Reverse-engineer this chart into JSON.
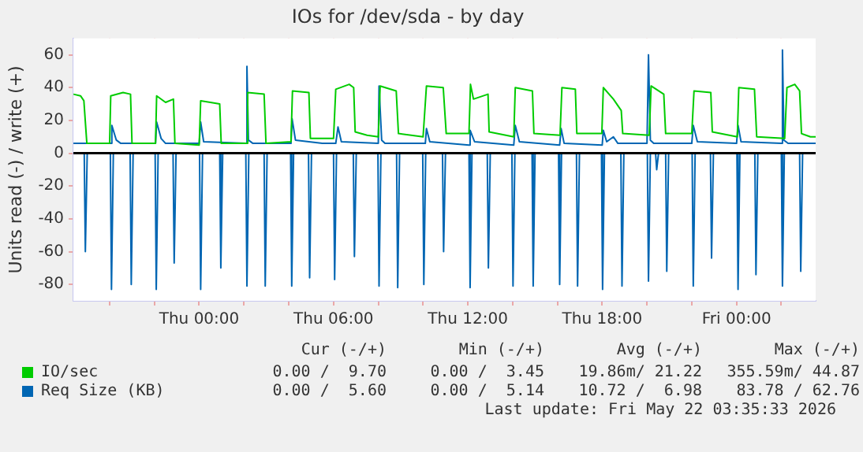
{
  "chart_data": {
    "type": "line",
    "title": "IOs for /dev/sda - by day",
    "ylabel": "Units read (-) / write (+)",
    "xlim": [
      "2026-05-20T18:23",
      "2026-05-22T03:32"
    ],
    "ylim": [
      -90,
      70
    ],
    "xticks": [
      {
        "value": "2026-05-20T20:00",
        "label": null
      },
      {
        "value": "2026-05-20T22:00",
        "label": null
      },
      {
        "value": "2026-05-21T00:00",
        "label": "Thu 00:00"
      },
      {
        "value": "2026-05-21T02:00",
        "label": null
      },
      {
        "value": "2026-05-21T04:00",
        "label": null
      },
      {
        "value": "2026-05-21T06:00",
        "label": "Thu 06:00"
      },
      {
        "value": "2026-05-21T08:00",
        "label": null
      },
      {
        "value": "2026-05-21T10:00",
        "label": null
      },
      {
        "value": "2026-05-21T12:00",
        "label": "Thu 12:00"
      },
      {
        "value": "2026-05-21T14:00",
        "label": null
      },
      {
        "value": "2026-05-21T16:00",
        "label": null
      },
      {
        "value": "2026-05-21T18:00",
        "label": "Thu 18:00"
      },
      {
        "value": "2026-05-21T20:00",
        "label": null
      },
      {
        "value": "2026-05-21T22:00",
        "label": null
      },
      {
        "value": "2026-05-22T00:00",
        "label": "Fri 00:00"
      },
      {
        "value": "2026-05-22T02:00",
        "label": null
      }
    ],
    "yticks": [
      -80,
      -60,
      -40,
      -20,
      0,
      20,
      40,
      60
    ],
    "grid": true,
    "legend": "bottom",
    "marker": "none",
    "line_style": "solid",
    "ref_lines": [
      {
        "axis": "y",
        "value": 0,
        "color": "#000000"
      }
    ],
    "series": [
      {
        "name": "IO/sec",
        "color": "#00cc00",
        "x": [
          "2026-05-20T18:23",
          "2026-05-20T18:42",
          "2026-05-20T18:51",
          "2026-05-20T18:59",
          "2026-05-20T20:00",
          "2026-05-20T20:03",
          "2026-05-20T20:36",
          "2026-05-20T20:56",
          "2026-05-20T21:00",
          "2026-05-20T22:03",
          "2026-05-20T22:06",
          "2026-05-20T22:30",
          "2026-05-20T22:51",
          "2026-05-20T22:55",
          "2026-05-21T00:00",
          "2026-05-21T00:04",
          "2026-05-21T00:30",
          "2026-05-21T00:55",
          "2026-05-21T00:59",
          "2026-05-21T02:06",
          "2026-05-21T02:10",
          "2026-05-21T02:54",
          "2026-05-21T02:59",
          "2026-05-21T04:06",
          "2026-05-21T04:10",
          "2026-05-21T04:54",
          "2026-05-21T04:58",
          "2026-05-21T06:00",
          "2026-05-21T06:06",
          "2026-05-21T06:42",
          "2026-05-21T06:54",
          "2026-05-21T06:58",
          "2026-05-21T07:30",
          "2026-05-21T08:00",
          "2026-05-21T08:05",
          "2026-05-21T08:48",
          "2026-05-21T08:54",
          "2026-05-21T10:00",
          "2026-05-21T10:09",
          "2026-05-21T10:54",
          "2026-05-21T11:02",
          "2026-05-21T12:03",
          "2026-05-21T12:07",
          "2026-05-21T12:15",
          "2026-05-21T12:54",
          "2026-05-21T12:57",
          "2026-05-21T14:03",
          "2026-05-21T14:07",
          "2026-05-21T14:53",
          "2026-05-21T14:57",
          "2026-05-21T16:07",
          "2026-05-21T16:12",
          "2026-05-21T16:48",
          "2026-05-21T16:52",
          "2026-05-21T17:59",
          "2026-05-21T18:03",
          "2026-05-21T18:30",
          "2026-05-21T18:51",
          "2026-05-21T18:55",
          "2026-05-21T20:06",
          "2026-05-21T20:11",
          "2026-05-21T20:45",
          "2026-05-21T20:50",
          "2026-05-21T22:00",
          "2026-05-21T22:06",
          "2026-05-21T22:51",
          "2026-05-21T22:55",
          "2026-05-22T00:02",
          "2026-05-22T00:06",
          "2026-05-22T00:48",
          "2026-05-22T00:54",
          "2026-05-22T02:09",
          "2026-05-22T02:15",
          "2026-05-22T02:36",
          "2026-05-22T02:49",
          "2026-05-22T02:54",
          "2026-05-22T03:18",
          "2026-05-22T03:32"
        ],
        "values": [
          36,
          35,
          32,
          6,
          6,
          35,
          37,
          36,
          6,
          6,
          35,
          31,
          33,
          6,
          5,
          32,
          31,
          30,
          6,
          6,
          37,
          36,
          6,
          7,
          38,
          37,
          9,
          9,
          39,
          42,
          40,
          13,
          11,
          10,
          41,
          38,
          12,
          10,
          41,
          40,
          12,
          12,
          42,
          33,
          36,
          13,
          10,
          40,
          38,
          12,
          11,
          40,
          39,
          12,
          12,
          40,
          33,
          26,
          12,
          11,
          41,
          36,
          12,
          12,
          38,
          37,
          13,
          10,
          40,
          39,
          10,
          9,
          40,
          42,
          38,
          12,
          10,
          10
        ]
      },
      {
        "name": "Req Size (KB)",
        "color": "#0066b3",
        "x": [
          "2026-05-20T18:23",
          "2026-05-20T20:03",
          "2026-05-20T20:06",
          "2026-05-20T20:18",
          "2026-05-20T20:30",
          "2026-05-20T22:03",
          "2026-05-20T22:06",
          "2026-05-20T22:18",
          "2026-05-20T22:30",
          "2026-05-21T00:00",
          "2026-05-21T00:04",
          "2026-05-21T00:12",
          "2026-05-21T02:06",
          "2026-05-21T02:08",
          "2026-05-21T02:12",
          "2026-05-21T02:24",
          "2026-05-21T04:06",
          "2026-05-21T04:09",
          "2026-05-21T04:18",
          "2026-05-21T05:30",
          "2026-05-21T06:06",
          "2026-05-21T06:12",
          "2026-05-21T06:21",
          "2026-05-21T08:00",
          "2026-05-21T08:02",
          "2026-05-21T08:09",
          "2026-05-21T08:18",
          "2026-05-21T10:06",
          "2026-05-21T10:09",
          "2026-05-21T10:18",
          "2026-05-21T12:03",
          "2026-05-21T12:06",
          "2026-05-21T12:18",
          "2026-05-21T14:03",
          "2026-05-21T14:07",
          "2026-05-21T14:18",
          "2026-05-21T16:06",
          "2026-05-21T16:10",
          "2026-05-21T16:18",
          "2026-05-21T18:00",
          "2026-05-21T18:03",
          "2026-05-21T18:12",
          "2026-05-21T18:30",
          "2026-05-21T18:42",
          "2026-05-21T20:00",
          "2026-05-21T20:04",
          "2026-05-21T20:09",
          "2026-05-21T20:18",
          "2026-05-21T22:00",
          "2026-05-21T22:04",
          "2026-05-21T22:15",
          "2026-05-22T00:00",
          "2026-05-22T00:04",
          "2026-05-22T00:12",
          "2026-05-22T02:00",
          "2026-05-22T02:03",
          "2026-05-22T02:07",
          "2026-05-22T02:18",
          "2026-05-22T03:32"
        ],
        "values": [
          6,
          6,
          17,
          8,
          6,
          6,
          19,
          9,
          6,
          6,
          19,
          7,
          6,
          53,
          8,
          6,
          6,
          21,
          8,
          6,
          6,
          16,
          7,
          6,
          41,
          8,
          6,
          6,
          15,
          7,
          5,
          14,
          7,
          5,
          17,
          7,
          5,
          15,
          6,
          5,
          14,
          7,
          10,
          6,
          6,
          60,
          8,
          6,
          6,
          17,
          7,
          6,
          17,
          7,
          6,
          63,
          8,
          6,
          6
        ]
      },
      {
        "color": "#0066b3",
        "x": [
          "2026-05-20T18:23",
          "2026-05-20T18:52",
          "2026-05-20T18:55",
          "2026-05-20T19:00",
          "2026-05-20T20:02",
          "2026-05-20T20:05",
          "2026-05-20T20:10",
          "2026-05-20T20:55",
          "2026-05-20T20:58",
          "2026-05-20T21:03",
          "2026-05-20T22:02",
          "2026-05-20T22:05",
          "2026-05-20T22:10",
          "2026-05-20T22:50",
          "2026-05-20T22:53",
          "2026-05-20T22:58",
          "2026-05-21T00:01",
          "2026-05-21T00:04",
          "2026-05-21T00:09",
          "2026-05-21T00:55",
          "2026-05-21T00:58",
          "2026-05-21T01:03",
          "2026-05-21T02:05",
          "2026-05-21T02:08",
          "2026-05-21T02:13",
          "2026-05-21T02:54",
          "2026-05-21T02:57",
          "2026-05-21T03:02",
          "2026-05-21T04:05",
          "2026-05-21T04:08",
          "2026-05-21T04:13",
          "2026-05-21T04:53",
          "2026-05-21T04:56",
          "2026-05-21T05:01",
          "2026-05-21T06:00",
          "2026-05-21T06:03",
          "2026-05-21T06:08",
          "2026-05-21T06:53",
          "2026-05-21T06:56",
          "2026-05-21T07:01",
          "2026-05-21T07:59",
          "2026-05-21T08:02",
          "2026-05-21T08:07",
          "2026-05-21T08:49",
          "2026-05-21T08:52",
          "2026-05-21T08:57",
          "2026-05-21T09:59",
          "2026-05-21T10:02",
          "2026-05-21T10:07",
          "2026-05-21T10:52",
          "2026-05-21T10:55",
          "2026-05-21T11:00",
          "2026-05-21T12:03",
          "2026-05-21T12:06",
          "2026-05-21T12:11",
          "2026-05-21T12:52",
          "2026-05-21T12:55",
          "2026-05-21T13:00",
          "2026-05-21T13:58",
          "2026-05-21T14:01",
          "2026-05-21T14:06",
          "2026-05-21T14:52",
          "2026-05-21T14:55",
          "2026-05-21T15:00",
          "2026-05-21T16:03",
          "2026-05-21T16:06",
          "2026-05-21T16:11",
          "2026-05-21T16:51",
          "2026-05-21T16:54",
          "2026-05-21T16:59",
          "2026-05-21T17:58",
          "2026-05-21T18:01",
          "2026-05-21T18:06",
          "2026-05-21T18:50",
          "2026-05-21T18:53",
          "2026-05-21T18:58",
          "2026-05-21T20:01",
          "2026-05-21T20:04",
          "2026-05-21T20:09",
          "2026-05-21T20:23",
          "2026-05-21T20:26",
          "2026-05-21T20:31",
          "2026-05-21T20:50",
          "2026-05-21T20:53",
          "2026-05-21T20:58",
          "2026-05-21T22:01",
          "2026-05-21T22:04",
          "2026-05-21T22:09",
          "2026-05-21T22:50",
          "2026-05-21T22:53",
          "2026-05-21T22:58",
          "2026-05-22T00:01",
          "2026-05-22T00:04",
          "2026-05-22T00:09",
          "2026-05-22T00:49",
          "2026-05-22T00:52",
          "2026-05-22T00:57",
          "2026-05-22T02:00",
          "2026-05-22T02:03",
          "2026-05-22T02:08",
          "2026-05-22T02:49",
          "2026-05-22T02:52",
          "2026-05-22T02:57",
          "2026-05-22T03:32"
        ],
        "values": [
          0,
          0,
          -60,
          0,
          0,
          -83,
          0,
          0,
          -80,
          0,
          0,
          -83,
          0,
          0,
          -67,
          0,
          0,
          -83,
          0,
          0,
          -70,
          0,
          0,
          -81,
          0,
          0,
          -81,
          0,
          0,
          -81,
          0,
          0,
          -76,
          0,
          0,
          -77,
          0,
          0,
          -63,
          0,
          0,
          -81,
          0,
          0,
          -82,
          0,
          0,
          -80,
          0,
          0,
          -60,
          0,
          0,
          -82,
          0,
          0,
          -70,
          0,
          0,
          -81,
          0,
          0,
          -81,
          0,
          0,
          -80,
          0,
          0,
          -81,
          0,
          0,
          -83,
          0,
          0,
          -81,
          0,
          0,
          -78,
          0,
          0,
          -10,
          0,
          0,
          -72,
          0,
          0,
          -81,
          0,
          0,
          -64,
          0,
          0,
          -83,
          0,
          0,
          -74,
          0,
          0,
          -81,
          0,
          0,
          -72,
          0,
          0
        ]
      }
    ],
    "annotations": [
      "Cur (-/+)",
      "Min (-/+)",
      "Avg (-/+)",
      "Max (-/+)",
      "0.00 /  9.70",
      "0.00 /  3.45",
      "19.86m/ 21.22",
      "355.59m/ 44.87",
      "0.00 /  5.60",
      "0.00 /  5.14",
      "10.72 /  6.98",
      "83.78 / 62.76",
      "Last update: Fri May 22 03:35:33 2026"
    ]
  }
}
